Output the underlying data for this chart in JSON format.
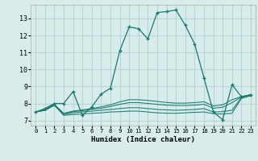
{
  "xlabel": "Humidex (Indice chaleur)",
  "xlim": [
    -0.5,
    23.5
  ],
  "ylim": [
    6.7,
    13.8
  ],
  "yticks": [
    7,
    8,
    9,
    10,
    11,
    12,
    13
  ],
  "xticks": [
    0,
    1,
    2,
    3,
    4,
    5,
    6,
    7,
    8,
    9,
    10,
    11,
    12,
    13,
    14,
    15,
    16,
    17,
    18,
    19,
    20,
    21,
    22,
    23
  ],
  "bg_color": "#d8ecec",
  "grid_color": "#b8d4d4",
  "line_color": "#1a7a6e",
  "lines": [
    {
      "x": [
        0,
        1,
        2,
        3,
        4,
        5,
        6,
        7,
        8,
        9,
        10,
        11,
        12,
        13,
        14,
        15,
        16,
        17,
        18,
        19,
        20,
        21,
        22,
        23
      ],
      "y": [
        7.5,
        7.7,
        8.0,
        8.0,
        8.7,
        7.3,
        7.8,
        8.55,
        8.9,
        11.1,
        12.5,
        12.4,
        11.8,
        13.35,
        13.4,
        13.5,
        12.6,
        11.5,
        9.5,
        7.5,
        7.05,
        9.1,
        8.4,
        8.5
      ],
      "marker": true
    },
    {
      "x": [
        0,
        1,
        2,
        3,
        4,
        5,
        6,
        7,
        8,
        9,
        10,
        11,
        12,
        13,
        14,
        15,
        16,
        17,
        18,
        19,
        20,
        21,
        22,
        23
      ],
      "y": [
        7.5,
        7.6,
        7.9,
        7.3,
        7.35,
        7.38,
        7.42,
        7.45,
        7.5,
        7.52,
        7.55,
        7.55,
        7.5,
        7.45,
        7.43,
        7.42,
        7.45,
        7.48,
        7.5,
        7.4,
        7.38,
        7.42,
        8.3,
        8.45
      ],
      "marker": false
    },
    {
      "x": [
        0,
        1,
        2,
        3,
        4,
        5,
        6,
        7,
        8,
        9,
        10,
        11,
        12,
        13,
        14,
        15,
        16,
        17,
        18,
        19,
        20,
        21,
        22,
        23
      ],
      "y": [
        7.5,
        7.6,
        7.9,
        7.35,
        7.45,
        7.5,
        7.55,
        7.6,
        7.65,
        7.7,
        7.75,
        7.75,
        7.7,
        7.65,
        7.62,
        7.6,
        7.62,
        7.65,
        7.7,
        7.5,
        7.52,
        7.6,
        8.35,
        8.5
      ],
      "marker": false
    },
    {
      "x": [
        0,
        1,
        2,
        3,
        4,
        5,
        6,
        7,
        8,
        9,
        10,
        11,
        12,
        13,
        14,
        15,
        16,
        17,
        18,
        19,
        20,
        21,
        22,
        23
      ],
      "y": [
        7.5,
        7.62,
        7.9,
        7.4,
        7.52,
        7.58,
        7.65,
        7.72,
        7.82,
        7.95,
        8.05,
        8.05,
        8.0,
        7.95,
        7.9,
        7.88,
        7.88,
        7.9,
        7.95,
        7.72,
        7.78,
        8.05,
        8.38,
        8.5
      ],
      "marker": false
    },
    {
      "x": [
        0,
        1,
        2,
        3,
        4,
        5,
        6,
        7,
        8,
        9,
        10,
        11,
        12,
        13,
        14,
        15,
        16,
        17,
        18,
        19,
        20,
        21,
        22,
        23
      ],
      "y": [
        7.5,
        7.65,
        7.95,
        7.42,
        7.55,
        7.62,
        7.7,
        7.8,
        7.92,
        8.1,
        8.22,
        8.22,
        8.18,
        8.12,
        8.06,
        8.02,
        8.02,
        8.05,
        8.1,
        7.85,
        7.92,
        8.22,
        8.4,
        8.52
      ],
      "marker": false
    }
  ]
}
